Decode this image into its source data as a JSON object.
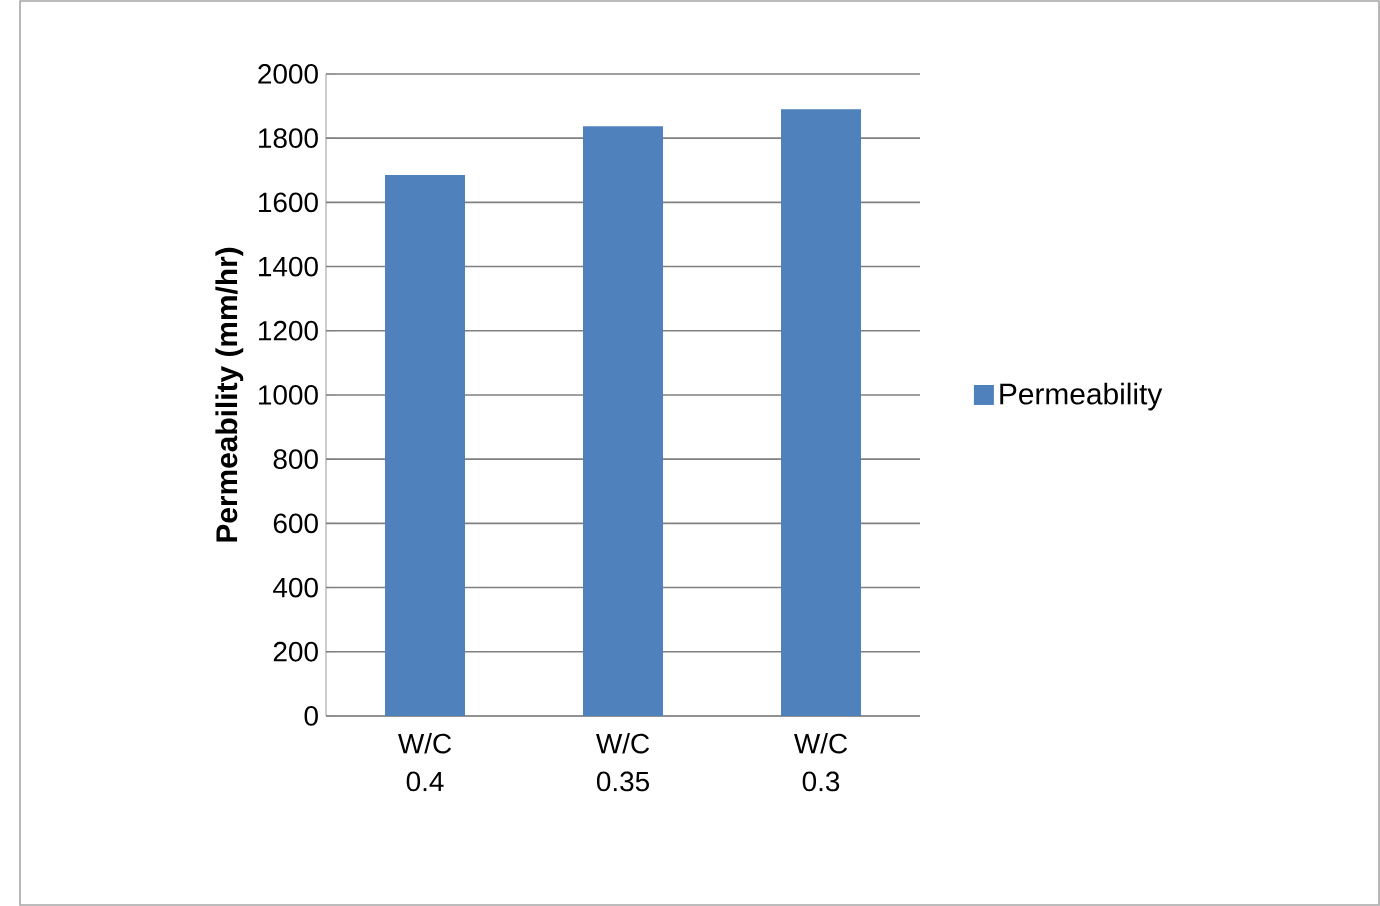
{
  "chart_data": {
    "type": "bar",
    "ylabel": "Permeability (mm/hr)",
    "categories": [
      "W/C 0.4",
      "W/C 0.35",
      "W/C 0.3"
    ],
    "series": [
      {
        "name": "Permeability",
        "color": "#4f81bd",
        "values": [
          1685,
          1837,
          1890
        ]
      }
    ],
    "ylim": [
      0,
      2000
    ],
    "yticks": [
      0,
      200,
      400,
      600,
      800,
      1000,
      1200,
      1400,
      1600,
      1800,
      2000
    ],
    "grid": "y",
    "legend": "right"
  }
}
